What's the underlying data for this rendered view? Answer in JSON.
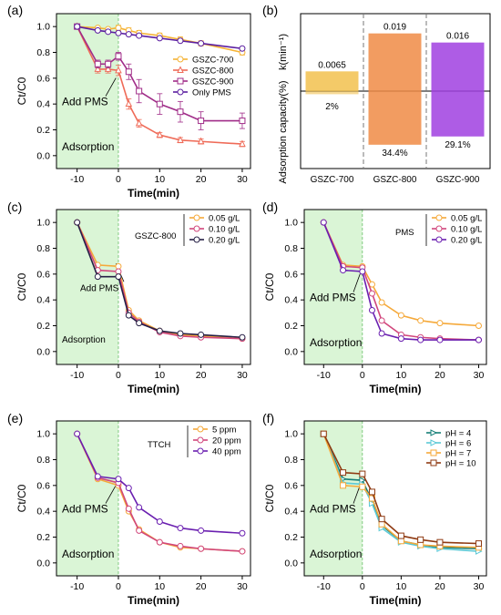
{
  "figure": {
    "panels": [
      {
        "id": "a",
        "label": "(a)",
        "title": "",
        "xlabel": "Time(min)",
        "ylabel": "Ct/C0",
        "annotations": [
          "Add PMS",
          "Adsorption"
        ],
        "legend_title": ""
      },
      {
        "id": "b",
        "label": "(b)",
        "title": "",
        "xlabel": "",
        "ylabel_top": "k(min⁻¹)",
        "ylabel_bottom": "Adsorption capacity(%)",
        "legend_title": ""
      },
      {
        "id": "c",
        "label": "(c)",
        "title": "",
        "xlabel": "Time(min)",
        "ylabel": "Ct/C0",
        "annotations": [
          "Add PMS",
          "Adsorption"
        ],
        "legend_title": "GSZC-800"
      },
      {
        "id": "d",
        "label": "(d)",
        "title": "",
        "xlabel": "Time(min)",
        "ylabel": "Ct/C0",
        "annotations": [
          "Add PMS",
          "Adsorption"
        ],
        "legend_title": "PMS"
      },
      {
        "id": "e",
        "label": "(e)",
        "title": "",
        "xlabel": "Time(min)",
        "ylabel": "Ct/C0",
        "annotations": [
          "Add PMS",
          "Adsorption"
        ],
        "legend_title": "TTCH"
      },
      {
        "id": "f",
        "label": "(f)",
        "title": "",
        "xlabel": "Time(min)",
        "ylabel": "Ct/C0",
        "annotations": [
          "Add PMS",
          "Adsorption"
        ],
        "legend_title": ""
      }
    ]
  },
  "chart_data": [
    {
      "type": "line",
      "panel": "a",
      "x": [
        -10,
        -5,
        -2.5,
        0,
        2.5,
        5,
        10,
        15,
        20,
        30
      ],
      "xlim": [
        -15,
        32
      ],
      "ylim": [
        -0.1,
        1.1
      ],
      "xticks": [
        -10,
        0,
        10,
        20,
        30
      ],
      "yticks": [
        0.0,
        0.2,
        0.4,
        0.6,
        0.8,
        1.0
      ],
      "shaded_region": [
        -15,
        0
      ],
      "grid": false,
      "legend_position": "middle-right",
      "series": [
        {
          "name": "GSZC-700",
          "color": "#f5b335",
          "marker": "circle",
          "values": [
            1.0,
            0.99,
            0.98,
            0.99,
            0.97,
            0.95,
            0.93,
            0.9,
            0.87,
            0.8
          ],
          "errors": [
            0,
            0.01,
            0.01,
            0.02,
            0.02,
            0.02,
            0.02,
            0.02,
            0.02,
            0.02
          ]
        },
        {
          "name": "GSZC-800",
          "color": "#ef6b58",
          "marker": "triangle",
          "values": [
            1.0,
            0.67,
            0.67,
            0.66,
            0.4,
            0.25,
            0.16,
            0.12,
            0.11,
            0.09
          ],
          "errors": [
            0,
            0.03,
            0.03,
            0.04,
            0.04,
            0.03,
            0.02,
            0.02,
            0.02,
            0.02
          ]
        },
        {
          "name": "GSZC-900",
          "color": "#a02c88",
          "marker": "square",
          "values": [
            1.0,
            0.71,
            0.71,
            0.77,
            0.65,
            0.5,
            0.4,
            0.34,
            0.27,
            0.27
          ],
          "errors": [
            0,
            0.03,
            0.03,
            0.03,
            0.06,
            0.09,
            0.08,
            0.08,
            0.07,
            0.06
          ]
        },
        {
          "name": "Only PMS",
          "color": "#5b1ea0",
          "marker": "circle",
          "values": [
            1.0,
            0.97,
            0.96,
            0.95,
            0.94,
            0.93,
            0.91,
            0.89,
            0.87,
            0.83
          ],
          "errors": [
            0,
            0.01,
            0.01,
            0.01,
            0.01,
            0.01,
            0.01,
            0.01,
            0.01,
            0.01
          ]
        }
      ]
    },
    {
      "type": "bar",
      "panel": "b",
      "categories": [
        "GSZC-700",
        "GSZC-800",
        "GSZC-900"
      ],
      "series": [
        {
          "name": "k(min⁻¹)",
          "values": [
            0.0065,
            0.019,
            0.016
          ],
          "labels": [
            "0.0065",
            "0.019",
            "0.016"
          ]
        },
        {
          "name": "Adsorption capacity(%)",
          "values": [
            2,
            34.4,
            29.1
          ],
          "labels": [
            "2%",
            "34.4%",
            "29.1%"
          ]
        }
      ],
      "colors": [
        "#f2c14e",
        "#f08b45",
        "#a040e0"
      ],
      "k_max": 0.021,
      "adsorption_max": 38
    },
    {
      "type": "line",
      "panel": "c",
      "x": [
        -10,
        -5,
        0,
        2.5,
        5,
        10,
        15,
        20,
        30
      ],
      "xlim": [
        -15,
        32
      ],
      "ylim": [
        -0.1,
        1.1
      ],
      "xticks": [
        -10,
        0,
        10,
        20,
        30
      ],
      "yticks": [
        0.0,
        0.2,
        0.4,
        0.6,
        0.8,
        1.0
      ],
      "shaded_region": [
        -15,
        0
      ],
      "grid": false,
      "legend_position": "top-right",
      "series": [
        {
          "name": "0.05 g/L",
          "color": "#f5a93a",
          "marker": "circle",
          "values": [
            1.0,
            0.67,
            0.66,
            0.32,
            0.24,
            0.16,
            0.13,
            0.12,
            0.1
          ],
          "errors": []
        },
        {
          "name": "0.10 g/L",
          "color": "#d1467c",
          "marker": "circle",
          "values": [
            1.0,
            0.63,
            0.62,
            0.3,
            0.23,
            0.15,
            0.12,
            0.11,
            0.1
          ],
          "errors": []
        },
        {
          "name": "0.20 g/L",
          "color": "#262046",
          "marker": "circle",
          "values": [
            1.0,
            0.58,
            0.58,
            0.28,
            0.22,
            0.16,
            0.14,
            0.13,
            0.11
          ],
          "errors": []
        }
      ]
    },
    {
      "type": "line",
      "panel": "d",
      "x": [
        -10,
        -5,
        0,
        2.5,
        5,
        10,
        15,
        20,
        30
      ],
      "xlim": [
        -15,
        32
      ],
      "ylim": [
        -0.1,
        1.1
      ],
      "xticks": [
        -10,
        0,
        10,
        20,
        30
      ],
      "yticks": [
        0.0,
        0.2,
        0.4,
        0.6,
        0.8,
        1.0
      ],
      "shaded_region": [
        -15,
        0
      ],
      "grid": false,
      "legend_position": "top-right",
      "series": [
        {
          "name": "0.05 g/L",
          "color": "#f5a93a",
          "marker": "circle",
          "values": [
            1.0,
            0.67,
            0.66,
            0.52,
            0.38,
            0.28,
            0.24,
            0.22,
            0.2
          ],
          "errors": []
        },
        {
          "name": "0.10 g/L",
          "color": "#d1467c",
          "marker": "circle",
          "values": [
            1.0,
            0.66,
            0.65,
            0.45,
            0.24,
            0.13,
            0.11,
            0.1,
            0.09
          ],
          "errors": []
        },
        {
          "name": "0.20 g/L",
          "color": "#6a1fb0",
          "marker": "circle",
          "values": [
            1.0,
            0.63,
            0.62,
            0.32,
            0.14,
            0.1,
            0.09,
            0.09,
            0.09
          ],
          "errors": []
        }
      ]
    },
    {
      "type": "line",
      "panel": "e",
      "x": [
        -10,
        -5,
        0,
        2.5,
        5,
        10,
        15,
        20,
        30
      ],
      "xlim": [
        -15,
        32
      ],
      "ylim": [
        -0.1,
        1.1
      ],
      "xticks": [
        -10,
        0,
        10,
        20,
        30
      ],
      "yticks": [
        0.0,
        0.2,
        0.4,
        0.6,
        0.8,
        1.0
      ],
      "shaded_region": [
        -15,
        0
      ],
      "grid": false,
      "legend_position": "top-right",
      "series": [
        {
          "name": "5 ppm",
          "color": "#f5a93a",
          "marker": "circle",
          "values": [
            1.0,
            0.65,
            0.6,
            0.4,
            0.26,
            0.16,
            0.12,
            0.11,
            0.09
          ],
          "errors": []
        },
        {
          "name": "20 ppm",
          "color": "#d1467c",
          "marker": "circle",
          "values": [
            1.0,
            0.66,
            0.62,
            0.42,
            0.25,
            0.16,
            0.13,
            0.11,
            0.09
          ],
          "errors": []
        },
        {
          "name": "40 ppm",
          "color": "#6a1fb0",
          "marker": "circle",
          "values": [
            1.0,
            0.67,
            0.65,
            0.58,
            0.43,
            0.32,
            0.27,
            0.25,
            0.23
          ],
          "errors": []
        }
      ]
    },
    {
      "type": "line",
      "panel": "f",
      "x": [
        -10,
        -5,
        0,
        2.5,
        5,
        10,
        15,
        20,
        30
      ],
      "xlim": [
        -15,
        32
      ],
      "ylim": [
        -0.1,
        1.1
      ],
      "xticks": [
        -10,
        0,
        10,
        20,
        30
      ],
      "yticks": [
        0.0,
        0.2,
        0.4,
        0.6,
        0.8,
        1.0
      ],
      "shaded_region": [
        -15,
        0
      ],
      "grid": false,
      "legend_position": "top-right",
      "series": [
        {
          "name": "pH = 4",
          "color": "#157f77",
          "marker": "triangle-right",
          "values": [
            1.0,
            0.65,
            0.64,
            0.48,
            0.29,
            0.17,
            0.14,
            0.12,
            0.11
          ],
          "errors": []
        },
        {
          "name": "pH = 6",
          "color": "#5cc9d6",
          "marker": "triangle-right",
          "values": [
            1.0,
            0.62,
            0.61,
            0.46,
            0.27,
            0.16,
            0.13,
            0.11,
            0.09
          ],
          "errors": []
        },
        {
          "name": "pH = 7",
          "color": "#f5a93a",
          "marker": "square",
          "values": [
            1.0,
            0.6,
            0.59,
            0.5,
            0.3,
            0.17,
            0.14,
            0.13,
            0.12
          ],
          "errors": []
        },
        {
          "name": "pH = 10",
          "color": "#8f3a12",
          "marker": "square",
          "values": [
            1.0,
            0.7,
            0.69,
            0.55,
            0.34,
            0.21,
            0.18,
            0.16,
            0.15
          ],
          "errors": []
        }
      ]
    }
  ]
}
